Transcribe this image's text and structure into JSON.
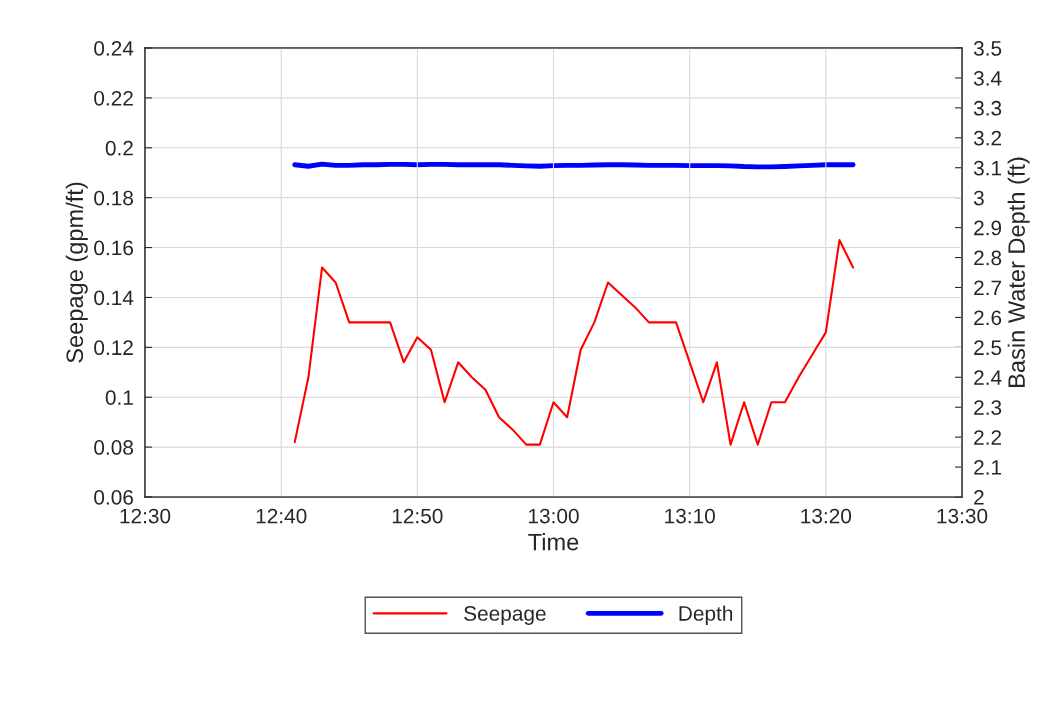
{
  "chart_data": {
    "type": "line",
    "xlabel": "Time",
    "ylabel": "Seepage (gpm/ft)",
    "y2label": "Basin Water Depth (ft)",
    "x": [
      12.6833,
      12.7,
      12.7167,
      12.7333,
      12.75,
      12.7667,
      12.7833,
      12.8,
      12.8167,
      12.8333,
      12.85,
      12.8667,
      12.8833,
      12.9,
      12.9167,
      12.9333,
      12.95,
      12.9667,
      12.9833,
      13.0,
      13.0167,
      13.0333,
      13.05,
      13.0667,
      13.0833,
      13.1,
      13.1167,
      13.1333,
      13.15,
      13.1667,
      13.1833,
      13.2,
      13.2167,
      13.2333,
      13.25,
      13.2667,
      13.2833,
      13.3,
      13.3167,
      13.3333,
      13.35,
      13.3667
    ],
    "series": [
      {
        "name": "Seepage",
        "color": "#ff0000",
        "values": [
          0.082,
          0.108,
          0.152,
          0.146,
          0.13,
          0.13,
          0.13,
          0.13,
          0.114,
          0.124,
          0.119,
          0.098,
          0.114,
          0.108,
          0.103,
          0.092,
          0.087,
          0.081,
          0.081,
          0.098,
          0.092,
          0.119,
          0.13,
          0.146,
          0.141,
          0.136,
          0.13,
          0.13,
          0.13,
          0.114,
          0.098,
          0.114,
          0.081,
          0.098,
          0.081,
          0.098,
          0.098,
          0.108,
          0.117,
          0.126,
          0.163,
          0.152
        ]
      },
      {
        "name": "Depth",
        "color": "#0000ff",
        "axis": "y2",
        "values": [
          3.11,
          3.105,
          3.112,
          3.108,
          3.108,
          3.11,
          3.11,
          3.111,
          3.111,
          3.11,
          3.111,
          3.111,
          3.11,
          3.11,
          3.11,
          3.11,
          3.108,
          3.106,
          3.105,
          3.107,
          3.108,
          3.108,
          3.109,
          3.11,
          3.11,
          3.109,
          3.108,
          3.108,
          3.108,
          3.107,
          3.107,
          3.107,
          3.106,
          3.104,
          3.103,
          3.103,
          3.104,
          3.106,
          3.108,
          3.11,
          3.11,
          3.11
        ]
      }
    ],
    "xlim": [
      12.5,
      13.5
    ],
    "xticks": [
      {
        "value": 12.5,
        "label": "12:30"
      },
      {
        "value": 12.6667,
        "label": "12:40"
      },
      {
        "value": 12.8333,
        "label": "12:50"
      },
      {
        "value": 13.0,
        "label": "13:00"
      },
      {
        "value": 13.1667,
        "label": "13:10"
      },
      {
        "value": 13.3333,
        "label": "13:20"
      },
      {
        "value": 13.5,
        "label": "13:30"
      }
    ],
    "ylim": [
      0.06,
      0.24
    ],
    "yticks": [
      {
        "value": 0.06,
        "label": "0.06"
      },
      {
        "value": 0.08,
        "label": "0.08"
      },
      {
        "value": 0.1,
        "label": "0.1"
      },
      {
        "value": 0.12,
        "label": "0.12"
      },
      {
        "value": 0.14,
        "label": "0.14"
      },
      {
        "value": 0.16,
        "label": "0.16"
      },
      {
        "value": 0.18,
        "label": "0.18"
      },
      {
        "value": 0.2,
        "label": "0.2"
      },
      {
        "value": 0.22,
        "label": "0.22"
      },
      {
        "value": 0.24,
        "label": "0.24"
      }
    ],
    "y2lim": [
      2,
      3.5
    ],
    "y2ticks": [
      2,
      2.1,
      2.2,
      2.3,
      2.4,
      2.5,
      2.6,
      2.7,
      2.8,
      2.9,
      3,
      3.1,
      3.2,
      3.3,
      3.4,
      3.5
    ],
    "grid": true,
    "legend": "bottom",
    "marker": "none",
    "line_style": "solid"
  }
}
